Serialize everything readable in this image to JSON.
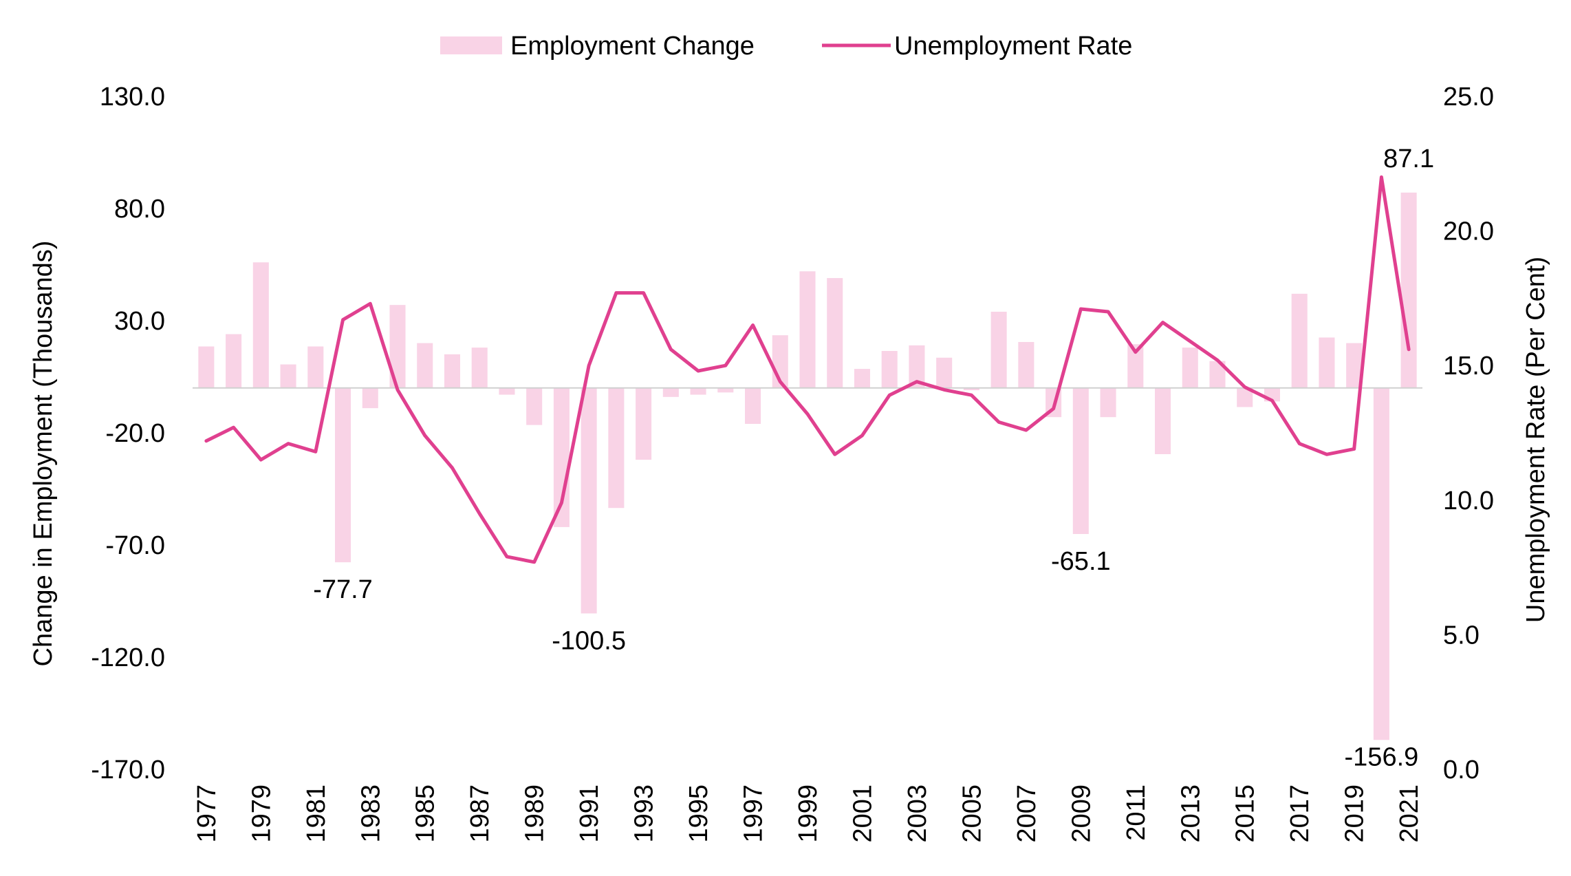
{
  "chart_data": {
    "type": "bar",
    "title": "",
    "categories": [
      "1977",
      "1978",
      "1979",
      "1980",
      "1981",
      "1982",
      "1983",
      "1984",
      "1985",
      "1986",
      "1987",
      "1988",
      "1989",
      "1990",
      "1991",
      "1992",
      "1993",
      "1994",
      "1995",
      "1996",
      "1997",
      "1998",
      "1999",
      "2000",
      "2001",
      "2002",
      "2003",
      "2004",
      "2005",
      "2006",
      "2007",
      "2008",
      "2009",
      "2010",
      "2011",
      "2012",
      "2013",
      "2014",
      "2015",
      "2016",
      "2017",
      "2018",
      "2019",
      "2020",
      "2021"
    ],
    "x_tick_labels": [
      "1977",
      "1979",
      "1981",
      "1983",
      "1985",
      "1987",
      "1989",
      "1991",
      "1993",
      "1995",
      "1997",
      "1999",
      "2001",
      "2003",
      "2005",
      "2007",
      "2009",
      "2011",
      "2013",
      "2015",
      "2017",
      "2019",
      "2021"
    ],
    "series": [
      {
        "name": "Employment Change",
        "type": "bar",
        "axis": "left",
        "color": "#f9d3e6",
        "values": [
          18.5,
          24.0,
          56.0,
          10.5,
          18.5,
          -77.7,
          -9.0,
          37.0,
          20.0,
          15.0,
          18.0,
          -3.0,
          -16.5,
          -62.0,
          -100.5,
          -53.5,
          -32.0,
          -4.0,
          -3.0,
          -2.0,
          -16.0,
          23.5,
          52.0,
          49.0,
          8.5,
          16.5,
          19.0,
          13.5,
          -1.0,
          34.0,
          20.5,
          -13.0,
          -65.1,
          -13.0,
          19.5,
          -29.5,
          18.0,
          12.0,
          -8.5,
          -6.0,
          42.0,
          22.5,
          20.0,
          -156.9,
          87.1
        ]
      },
      {
        "name": "Unemployment Rate",
        "type": "line",
        "axis": "right",
        "color": "#e0408f",
        "values": [
          12.2,
          12.7,
          11.5,
          12.1,
          11.8,
          16.7,
          17.3,
          14.1,
          12.4,
          11.2,
          9.5,
          7.9,
          7.7,
          9.9,
          15.0,
          17.7,
          17.7,
          15.6,
          14.8,
          15.0,
          16.5,
          14.4,
          13.2,
          11.7,
          12.4,
          13.9,
          14.4,
          14.1,
          13.9,
          12.9,
          12.6,
          13.4,
          17.1,
          17.0,
          15.5,
          16.6,
          15.9,
          15.2,
          14.2,
          13.7,
          12.1,
          11.7,
          11.9,
          22.0,
          15.6
        ]
      }
    ],
    "y_left": {
      "label": "Change in Employment (Thousands)",
      "min": -170,
      "max": 130,
      "ticks": [
        130.0,
        80.0,
        30.0,
        -20.0,
        -70.0,
        -120.0,
        -170.0
      ],
      "tick_labels": [
        "130.0",
        "80.0",
        "30.0",
        "-20.0",
        "-70.0",
        "-120.0",
        "-170.0"
      ]
    },
    "y_right": {
      "label": "Unemployment Rate (Per Cent)",
      "min": 0,
      "max": 25,
      "ticks": [
        25.0,
        20.0,
        15.0,
        10.0,
        5.0,
        0.0
      ],
      "tick_labels": [
        "25.0",
        "20.0",
        "15.0",
        "10.0",
        "5.0",
        "0.0"
      ]
    },
    "annotations": [
      {
        "category": "1982",
        "text": "-77.7"
      },
      {
        "category": "1991",
        "text": "-100.5"
      },
      {
        "category": "2009",
        "text": "-65.1"
      },
      {
        "category": "2020",
        "text": "-156.9"
      },
      {
        "category": "2021",
        "text": "87.1"
      }
    ],
    "legend": {
      "position": "top-center",
      "items": [
        "Employment Change",
        "Unemployment Rate"
      ]
    },
    "grid": false,
    "zero_line": true
  }
}
